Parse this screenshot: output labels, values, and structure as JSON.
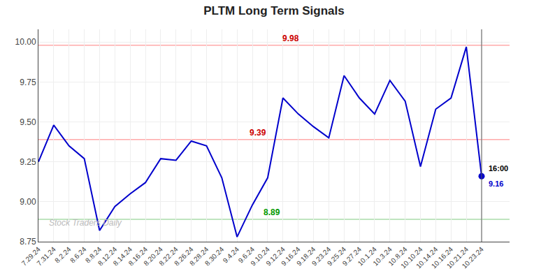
{
  "chart_data": {
    "type": "line",
    "title": "PLTM Long Term Signals",
    "categories": [
      "7.29.24",
      "7.31.24",
      "8.2.24",
      "8.6.24",
      "8.8.24",
      "8.12.24",
      "8.14.24",
      "8.16.24",
      "8.20.24",
      "8.22.24",
      "8.26.24",
      "8.28.24",
      "8.30.24",
      "9.4.24",
      "9.6.24",
      "9.10.24",
      "9.12.24",
      "9.16.24",
      "9.18.24",
      "9.23.24",
      "9.25.24",
      "9.27.24",
      "10.1.24",
      "10.3.24",
      "10.8.24",
      "10.10.24",
      "10.14.24",
      "10.16.24",
      "10.21.24",
      "10.23.24"
    ],
    "values": [
      9.25,
      9.48,
      9.35,
      9.27,
      8.82,
      8.97,
      9.05,
      9.12,
      9.27,
      9.26,
      9.38,
      9.35,
      9.15,
      8.78,
      8.98,
      9.15,
      9.65,
      9.55,
      9.47,
      9.4,
      9.79,
      9.65,
      9.55,
      9.76,
      9.63,
      9.22,
      9.58,
      9.65,
      9.97,
      9.16
    ],
    "color": "#0000cc",
    "ylim": [
      8.75,
      10.08
    ],
    "yticks": [
      8.75,
      {
        "value": 9.0,
        "label": "9.00"
      },
      9.25,
      {
        "value": 9.5,
        "label": "9.50"
      },
      9.75,
      {
        "value": 10.0,
        "label": "10.00"
      }
    ],
    "grid": true,
    "reference_lines": [
      {
        "value": 9.98,
        "label": "9.98",
        "color": "#ffaaaa",
        "label_color": "#cc0000"
      },
      {
        "value": 9.39,
        "label": "9.39",
        "color": "#ffaaaa",
        "label_color": "#cc0000"
      },
      {
        "value": 8.89,
        "label": "8.89",
        "color": "#aaddaa",
        "label_color": "#009900"
      }
    ],
    "vline": {
      "x": "10.23.24",
      "color": "#555555"
    },
    "annotations": [
      {
        "text": "16:00",
        "color": "#000000"
      },
      {
        "text": "9.16",
        "color": "#0000cc"
      }
    ],
    "watermark": {
      "text": "Stock Traders Daily",
      "color": "#bbbbbb"
    }
  }
}
